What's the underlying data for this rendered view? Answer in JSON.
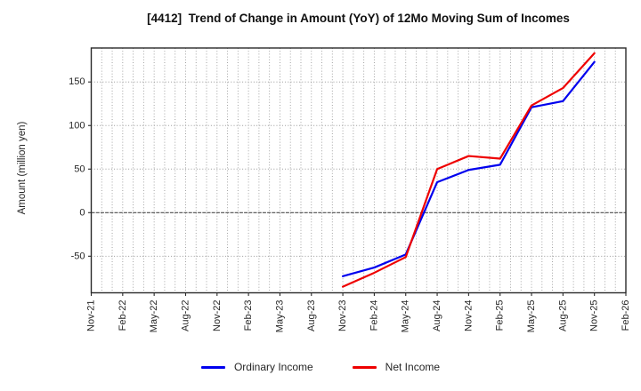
{
  "chart_data": {
    "type": "line",
    "title": "[4412]  Trend of Change in Amount (YoY) of 12Mo Moving Sum of Incomes",
    "xlabel": "",
    "ylabel": "Amount (million yen)",
    "x_ticks": [
      "Nov-21",
      "Feb-22",
      "May-22",
      "Aug-22",
      "Nov-22",
      "Feb-23",
      "May-23",
      "Aug-23",
      "Nov-23",
      "Feb-24",
      "May-24",
      "Aug-24",
      "Nov-24",
      "Feb-25",
      "May-25",
      "Aug-25",
      "Nov-25",
      "Feb-26"
    ],
    "y_ticks": [
      -50,
      0,
      50,
      100,
      150
    ],
    "ylim": [
      -92,
      189
    ],
    "grid": "dotted gray gridlines, vertical lines every month, horizontal at each y tick, zero line emphasized darker",
    "legend_position": "bottom-center",
    "series": [
      {
        "name": "Ordinary Income",
        "color": "#0000ee",
        "x": [
          "Nov-23",
          "Feb-24",
          "May-24",
          "Aug-24",
          "Nov-24",
          "Feb-25",
          "May-25",
          "Aug-25",
          "Nov-25"
        ],
        "values": [
          -73,
          -63,
          -48,
          35,
          49,
          55,
          121,
          128,
          173
        ]
      },
      {
        "name": "Net Income",
        "color": "#ee0000",
        "x": [
          "Nov-23",
          "Feb-24",
          "May-24",
          "Aug-24",
          "Nov-24",
          "Feb-25",
          "May-25",
          "Aug-25",
          "Nov-25"
        ],
        "values": [
          -85,
          -69,
          -51,
          50,
          65,
          62,
          123,
          143,
          183
        ]
      }
    ],
    "style": {
      "grid_color": "#9a9a9a",
      "zero_line_color": "#4d4d4d",
      "frame_color": "#2a2a2a",
      "tick_text_color": "#262626",
      "line_width": 2.2
    }
  }
}
